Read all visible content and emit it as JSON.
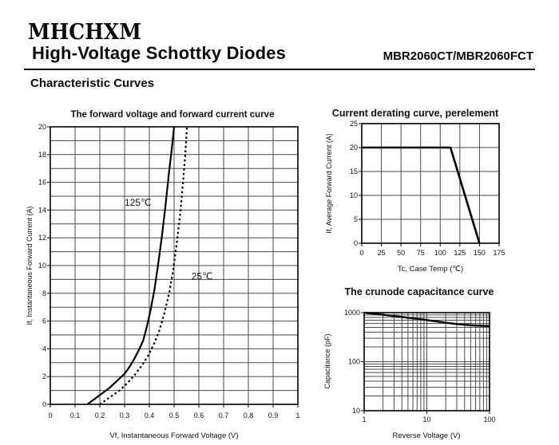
{
  "header": {
    "logo": "MHCHXM",
    "title": "High-Voltage Schottky Diodes",
    "part_number": "MBR2060CT/MBR2060FCT",
    "section_heading": "Characteristic Curves"
  },
  "colors": {
    "background": "#ffffff",
    "text": "#111111",
    "grid": "#4a4a4a",
    "border": "#000000",
    "curve": "#000000"
  },
  "chart_data": [
    {
      "id": "forward-voltage-forward-current",
      "type": "line",
      "title": "The forward voltage and forward current curve",
      "xlabel": "Vf, Instantaneous Forward Voltage (V)",
      "ylabel": "If, Instantaneous Forward Current (A)",
      "xlim": [
        0,
        1
      ],
      "ylim": [
        0,
        20
      ],
      "x_grid_step": 0.1,
      "y_grid_step": 1,
      "xtick_values": [
        0,
        0.1,
        0.2,
        0.3,
        0.4,
        0.5,
        0.6,
        0.7,
        0.8,
        0.9,
        1
      ],
      "xtick_labels": [
        "0",
        "0.1",
        "0.2",
        "0.3",
        "0.4",
        "0.5",
        "0.6",
        "0.7",
        "0.8",
        "0.9",
        "1"
      ],
      "ytick_values": [
        0,
        2,
        4,
        6,
        8,
        10,
        12,
        14,
        16,
        18,
        20
      ],
      "ytick_labels": [
        "0",
        "2",
        "4",
        "6",
        "8",
        "10",
        "12",
        "14",
        "16",
        "18",
        "20"
      ],
      "grid": true,
      "series": [
        {
          "name": "125℃",
          "style": "solid",
          "label_pos": [
            0.3,
            14.3
          ],
          "points": [
            [
              0.15,
              0
            ],
            [
              0.18,
              0.4
            ],
            [
              0.21,
              0.8
            ],
            [
              0.24,
              1.2
            ],
            [
              0.27,
              1.7
            ],
            [
              0.3,
              2.2
            ],
            [
              0.32,
              2.7
            ],
            [
              0.34,
              3.3
            ],
            [
              0.36,
              4.0
            ],
            [
              0.375,
              4.6
            ],
            [
              0.39,
              5.6
            ],
            [
              0.405,
              6.8
            ],
            [
              0.42,
              8.2
            ],
            [
              0.435,
              10
            ],
            [
              0.45,
              12
            ],
            [
              0.465,
              14.3
            ],
            [
              0.48,
              16.8
            ],
            [
              0.49,
              18.3
            ],
            [
              0.5,
              20
            ]
          ]
        },
        {
          "name": "25℃",
          "style": "dotted",
          "label_pos": [
            0.57,
            9.0
          ],
          "points": [
            [
              0.2,
              0
            ],
            [
              0.24,
              0.5
            ],
            [
              0.28,
              1.0
            ],
            [
              0.31,
              1.5
            ],
            [
              0.34,
              2.1
            ],
            [
              0.37,
              2.8
            ],
            [
              0.395,
              3.5
            ],
            [
              0.42,
              4.4
            ],
            [
              0.44,
              5.3
            ],
            [
              0.46,
              6.5
            ],
            [
              0.48,
              8.0
            ],
            [
              0.495,
              9.5
            ],
            [
              0.51,
              11.5
            ],
            [
              0.525,
              13.8
            ],
            [
              0.535,
              15.8
            ],
            [
              0.545,
              18
            ],
            [
              0.552,
              20
            ]
          ]
        }
      ]
    },
    {
      "id": "current-derating",
      "type": "line",
      "title": "Current derating curve, perelement",
      "xlabel": "Tc, Case Temp (℃)",
      "ylabel": "If, Average Forward Current (A)",
      "xlim": [
        0,
        175
      ],
      "ylim": [
        0,
        25
      ],
      "x_grid_step": 25,
      "y_grid_step": 5,
      "xtick_values": [
        0,
        25,
        50,
        75,
        100,
        125,
        150,
        175
      ],
      "xtick_labels": [
        "0",
        "25",
        "50",
        "75",
        "100",
        "125",
        "150",
        "175"
      ],
      "ytick_values": [
        0,
        5,
        10,
        15,
        20,
        25
      ],
      "ytick_labels": [
        "0",
        "5",
        "10",
        "15",
        "20",
        "25"
      ],
      "grid": true,
      "series": [
        {
          "name": "",
          "style": "solid",
          "points": [
            [
              0,
              20
            ],
            [
              113,
              20
            ],
            [
              150,
              0
            ]
          ]
        }
      ]
    },
    {
      "id": "crunode-capacitance",
      "type": "line",
      "title": "The crunode capacitance curve",
      "xlabel": "Reverse Voltage (V)",
      "ylabel": "Capacitance (pF)",
      "xscale": "log",
      "yscale": "log",
      "xlim": [
        1,
        100
      ],
      "ylim": [
        10,
        1000
      ],
      "xtick_values": [
        1,
        10,
        100
      ],
      "xtick_labels": [
        "1",
        "10",
        "100"
      ],
      "ytick_values": [
        10,
        100,
        1000
      ],
      "ytick_labels": [
        "10",
        "100",
        "1000"
      ],
      "grid": true,
      "series": [
        {
          "name": "",
          "style": "solid",
          "points": [
            [
              1,
              1000
            ],
            [
              1.3,
              965
            ],
            [
              1.6,
              935
            ],
            [
              2,
              905
            ],
            [
              2.5,
              875
            ],
            [
              3,
              850
            ],
            [
              4,
              815
            ],
            [
              5,
              788
            ],
            [
              6,
              765
            ],
            [
              8,
              732
            ],
            [
              10,
              705
            ],
            [
              13,
              672
            ],
            [
              16,
              648
            ],
            [
              20,
              622
            ],
            [
              25,
              600
            ],
            [
              30,
              585
            ],
            [
              40,
              565
            ],
            [
              50,
              553
            ],
            [
              60,
              546
            ],
            [
              80,
              538
            ],
            [
              100,
              533
            ]
          ]
        }
      ]
    }
  ]
}
